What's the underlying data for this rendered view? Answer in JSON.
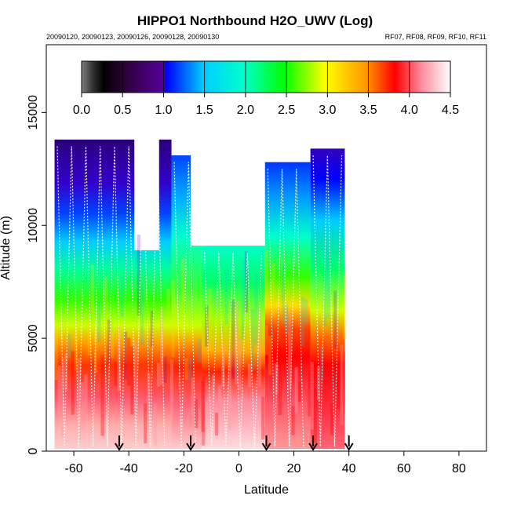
{
  "chart_data": {
    "type": "heatmap",
    "title": "HIPPO1 Northbound H2O_UWV (Log)",
    "subtitle_left": "20090120, 20090123, 20090126, 20090128, 20090130",
    "subtitle_right": "RF07, RF08, RF09, RF10, RF11",
    "xlabel": "Latitude",
    "ylabel": "Altitude (m)",
    "xlim": [
      -70,
      90
    ],
    "ylim": [
      0,
      18000
    ],
    "x_ticks": [
      -60,
      -40,
      -20,
      0,
      20,
      40,
      60,
      80
    ],
    "x_tick_labels": [
      "-60",
      "-40",
      "-20",
      "0",
      "20",
      "40",
      "60",
      "80"
    ],
    "y_ticks": [
      0,
      5000,
      10000,
      15000
    ],
    "y_tick_labels": [
      "0",
      "5000",
      "10000",
      "15000"
    ],
    "colorbar": {
      "range": [
        0,
        4.5
      ],
      "ticks": [
        0.0,
        0.5,
        1.0,
        1.5,
        2.0,
        2.5,
        3.0,
        3.5,
        4.0,
        4.5
      ],
      "tick_labels": [
        "0.0",
        "0.5",
        "1.0",
        "1.5",
        "2.0",
        "2.5",
        "3.0",
        "3.5",
        "4.0",
        "4.5"
      ]
    },
    "profile_markers_lat": [
      -43.5,
      -17.5,
      10,
      27,
      40
    ],
    "segments": [
      {
        "lat_range": [
          -67,
          -24.5
        ],
        "top_altitude": 13800
      },
      {
        "lat_range": [
          -24.5,
          -13.5
        ],
        "top_altitude": 13100
      },
      {
        "lat_range": [
          -13.5,
          9.5
        ],
        "top_altitude": 9100
      },
      {
        "lat_range": [
          9.5,
          26
        ],
        "top_altitude": 12800
      },
      {
        "lat_range": [
          26,
          38.5
        ],
        "top_altitude": 13400
      }
    ],
    "gaps_above": [
      {
        "lat_range": [
          -38,
          -29
        ],
        "altitude_range": [
          8900,
          14500
        ]
      },
      {
        "lat_range": [
          -17.5,
          -11
        ],
        "altitude_range": [
          9100,
          14500
        ]
      }
    ]
  }
}
